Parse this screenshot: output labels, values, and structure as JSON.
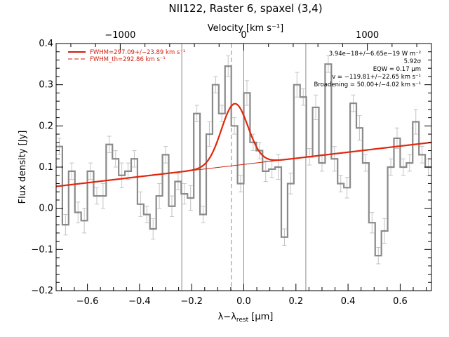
{
  "chart_data": {
    "type": "line",
    "title": "NII122, Raster 6, spaxel (3,4)",
    "xlabel": "λ−λrest [μm]",
    "xlabel_parts": {
      "main": "λ−λ",
      "sub": "rest",
      "unit": " [μm]"
    },
    "ylabel": "Flux density [Jy]",
    "top_xlabel": "Velocity [km s⁻¹]",
    "xlim": [
      -0.72,
      0.72
    ],
    "ylim": [
      -0.2,
      0.4
    ],
    "x_ticks": [
      {
        "value": -0.6,
        "label": "−0.6"
      },
      {
        "value": -0.4,
        "label": "−0.4"
      },
      {
        "value": -0.2,
        "label": "−0.2"
      },
      {
        "value": 0.0,
        "label": "0.0"
      },
      {
        "value": 0.2,
        "label": "0.2"
      },
      {
        "value": 0.4,
        "label": "0.4"
      },
      {
        "value": 0.6,
        "label": "0.6"
      }
    ],
    "y_ticks": [
      {
        "value": -0.2,
        "label": "−0.2"
      },
      {
        "value": -0.1,
        "label": "−0.1"
      },
      {
        "value": 0.0,
        "label": "0.0"
      },
      {
        "value": 0.1,
        "label": "0.1"
      },
      {
        "value": 0.2,
        "label": "0.2"
      },
      {
        "value": 0.3,
        "label": "0.3"
      },
      {
        "value": 0.4,
        "label": "0.4"
      }
    ],
    "top_ticks": [
      {
        "position": -0.474,
        "label": "−1000"
      },
      {
        "position": -0.0,
        "label": "0"
      },
      {
        "position": 0.474,
        "label": "1000"
      }
    ],
    "vertical_lines": [
      {
        "x": -0.238,
        "style": "solid"
      },
      {
        "x": -0.048,
        "style": "dashed"
      },
      {
        "x": 0.0,
        "style": "solid"
      },
      {
        "x": 0.238,
        "style": "solid"
      }
    ],
    "legend": [
      {
        "label": "FWHM=297.09+/−23.89 km s⁻¹",
        "style": "solid"
      },
      {
        "label": "FWHM_th=292.86 km s⁻¹",
        "style": "dashed"
      }
    ],
    "annotations": [
      "3.94e−18+/−6.65e−19 W m⁻²",
      "5.92σ",
      "EQW = 0.17 μm",
      "v = −119.81+/−22.65 km s⁻¹",
      "Broadening = 50.00+/−4.02 km s⁻¹"
    ],
    "series": [
      {
        "type": "step",
        "x_start": -0.72,
        "bin_width": 0.024,
        "values": [
          0.15,
          -0.04,
          0.09,
          -0.01,
          -0.03,
          0.09,
          0.03,
          0.03,
          0.155,
          0.12,
          0.08,
          0.09,
          0.12,
          0.01,
          -0.015,
          -0.05,
          0.03,
          0.13,
          0.005,
          0.065,
          0.035,
          0.025,
          0.23,
          -0.015,
          0.18,
          0.3,
          0.23,
          0.345,
          0.2,
          0.06,
          0.28,
          0.16,
          0.14,
          0.09,
          0.095,
          0.1,
          -0.07,
          0.06,
          0.3,
          0.27,
          0.125,
          0.245,
          0.11,
          0.35,
          0.12,
          0.06,
          0.05,
          0.255,
          0.195,
          0.11,
          -0.035,
          -0.115,
          -0.055,
          0.1,
          0.17,
          0.1,
          0.11,
          0.21,
          0.13,
          0.1
        ],
        "errors": [
          0.02,
          0.025,
          0.02,
          0.025,
          0.03,
          0.02,
          0.02,
          0.03,
          0.02,
          0.02,
          0.03,
          0.02,
          0.02,
          0.03,
          0.02,
          0.025,
          0.03,
          0.02,
          0.025,
          0.02,
          0.025,
          0.03,
          0.02,
          0.02,
          0.03,
          0.02,
          0.02,
          0.025,
          0.02,
          0.02,
          0.03,
          0.02,
          0.02,
          0.025,
          0.02,
          0.03,
          0.02,
          0.025,
          0.03,
          0.02,
          0.02,
          0.03,
          0.02,
          0.02,
          0.03,
          0.02,
          0.025,
          0.02,
          0.03,
          0.02,
          0.025,
          0.02,
          0.03,
          0.02,
          0.025,
          0.02,
          0.02,
          0.03,
          0.02,
          0.02
        ]
      },
      {
        "type": "continuum",
        "slope": 0.0742,
        "intercept": 0.1065
      },
      {
        "type": "gaussian_fit",
        "center": -0.035,
        "amplitude": 0.15,
        "fwhm": 0.12
      }
    ]
  }
}
